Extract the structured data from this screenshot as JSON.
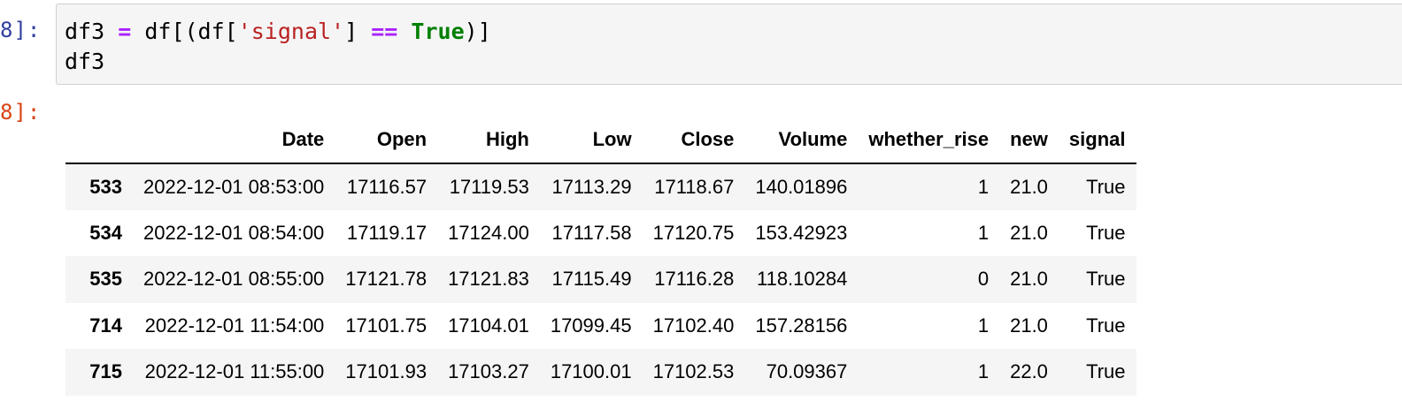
{
  "input_cell": {
    "prompt": "8]:",
    "code_line_1": {
      "var": "df3",
      "assign_op": "=",
      "expr_start": "df[(df[",
      "string_literal": "'signal'",
      "bracket_close": "]",
      "eq_op": "==",
      "keyword_true": "True",
      "expr_end": ")]"
    },
    "code_line_2": "df3"
  },
  "output_cell": {
    "prompt": "8]:"
  },
  "table": {
    "index_header": "",
    "columns": [
      "Date",
      "Open",
      "High",
      "Low",
      "Close",
      "Volume",
      "whether_rise",
      "new",
      "signal"
    ],
    "rows": [
      {
        "index": "533",
        "cells": [
          "2022-12-01 08:53:00",
          "17116.57",
          "17119.53",
          "17113.29",
          "17118.67",
          "140.01896",
          "1",
          "21.0",
          "True"
        ]
      },
      {
        "index": "534",
        "cells": [
          "2022-12-01 08:54:00",
          "17119.17",
          "17124.00",
          "17117.58",
          "17120.75",
          "153.42923",
          "1",
          "21.0",
          "True"
        ]
      },
      {
        "index": "535",
        "cells": [
          "2022-12-01 08:55:00",
          "17121.78",
          "17121.83",
          "17115.49",
          "17116.28",
          "118.10284",
          "0",
          "21.0",
          "True"
        ]
      },
      {
        "index": "714",
        "cells": [
          "2022-12-01 11:54:00",
          "17101.75",
          "17104.01",
          "17099.45",
          "17102.40",
          "157.28156",
          "1",
          "21.0",
          "True"
        ]
      },
      {
        "index": "715",
        "cells": [
          "2022-12-01 11:55:00",
          "17101.93",
          "17103.27",
          "17100.01",
          "17102.53",
          "70.09367",
          "1",
          "22.0",
          "True"
        ]
      }
    ]
  },
  "colors": {
    "in_prompt": "#303f9f",
    "out_prompt": "#d84315",
    "keyword": "#008000",
    "operator": "#aa22ff",
    "string": "#ba2121",
    "cell_background": "#f5f5f5",
    "row_stripe": "#f5f5f5"
  }
}
